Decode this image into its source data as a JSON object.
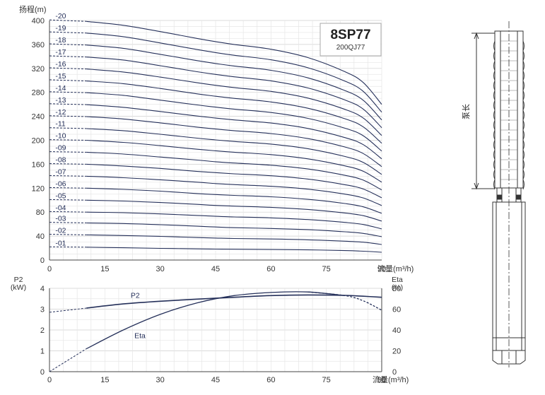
{
  "chart_data": [
    {
      "type": "line",
      "title": "8SP77",
      "subtitle": "200QJ77",
      "xlabel": "流量(m³/h)",
      "ylabel": "扬程(m)",
      "xlim": [
        0,
        90
      ],
      "ylim": [
        0,
        400
      ],
      "x_ticks": [
        "0",
        "15",
        "30",
        "45",
        "60",
        "75",
        "90"
      ],
      "y_ticks": [
        "0",
        "40",
        "80",
        "120",
        "160",
        "200",
        "240",
        "280",
        "320",
        "360",
        "400"
      ],
      "grid": true,
      "x": [
        0,
        10,
        20,
        30,
        40,
        45,
        50,
        60,
        70,
        80,
        85,
        90
      ],
      "series": [
        {
          "name": "-01",
          "values": [
            22,
            21.5,
            20.5,
            19.5,
            18.7,
            18.3,
            18.0,
            17.6,
            17.0,
            15.8,
            14.8,
            13.0
          ]
        },
        {
          "name": "-02",
          "values": [
            43,
            42,
            41,
            39.5,
            37.5,
            36.7,
            36.0,
            35.2,
            33.8,
            31.5,
            29.8,
            26.0
          ]
        },
        {
          "name": "-03",
          "values": [
            63,
            62,
            61,
            59,
            56.5,
            55.2,
            54.0,
            52.8,
            50.8,
            47.2,
            44.5,
            39.0
          ]
        },
        {
          "name": "-04",
          "values": [
            81,
            80,
            79,
            77,
            74.5,
            73.0,
            72.0,
            70.4,
            67.6,
            62.9,
            59.3,
            52.0
          ]
        },
        {
          "name": "-05",
          "values": [
            101,
            100,
            98.5,
            96,
            93,
            91.2,
            90.0,
            88.0,
            84.5,
            78.6,
            74.1,
            65.0
          ]
        },
        {
          "name": "-06",
          "values": [
            121,
            120,
            118,
            115,
            111,
            109.4,
            108.0,
            105.6,
            101.4,
            94.4,
            88.9,
            78.0
          ]
        },
        {
          "name": "-07",
          "values": [
            141,
            140,
            137.5,
            134,
            130,
            127.7,
            126.0,
            123.2,
            118.3,
            110.1,
            103.7,
            91.0
          ]
        },
        {
          "name": "-08",
          "values": [
            161,
            160,
            157,
            153,
            148,
            145.9,
            144.0,
            140.8,
            135.2,
            125.8,
            118.6,
            104.0
          ]
        },
        {
          "name": "-09",
          "values": [
            181,
            180,
            177,
            172,
            167,
            164.1,
            162.0,
            158.4,
            152.1,
            141.5,
            133.4,
            117.0
          ]
        },
        {
          "name": "-10",
          "values": [
            201,
            200,
            196.5,
            191,
            185,
            182.4,
            180.0,
            176.0,
            169.0,
            157.3,
            148.2,
            130.0
          ]
        },
        {
          "name": "-11",
          "values": [
            221,
            219.5,
            216,
            210,
            203.5,
            200.6,
            198.0,
            193.6,
            185.9,
            173.0,
            163.0,
            143.0
          ]
        },
        {
          "name": "-12",
          "values": [
            241,
            239.5,
            235.5,
            229,
            222,
            218.8,
            216.0,
            211.2,
            202.8,
            188.8,
            177.8,
            156.0
          ]
        },
        {
          "name": "-13",
          "values": [
            261,
            259.5,
            255,
            248,
            240.5,
            237.1,
            234.0,
            228.8,
            219.7,
            204.5,
            192.7,
            169.0
          ]
        },
        {
          "name": "-14",
          "values": [
            281,
            279.5,
            275,
            267,
            259,
            255.3,
            252.0,
            246.4,
            236.6,
            220.2,
            207.5,
            182.0
          ]
        },
        {
          "name": "-15",
          "values": [
            301,
            299,
            294.5,
            286.5,
            277.5,
            273.5,
            270.0,
            264.0,
            253.5,
            236.0,
            222.3,
            195.0
          ]
        },
        {
          "name": "-16",
          "values": [
            321,
            319,
            314,
            305.5,
            296,
            291.8,
            288.0,
            281.6,
            270.4,
            251.7,
            237.1,
            208.0
          ]
        },
        {
          "name": "-17",
          "values": [
            341,
            339,
            334,
            324.5,
            314.5,
            310.0,
            306.0,
            299.2,
            287.3,
            267.4,
            252.0,
            221.0
          ]
        },
        {
          "name": "-18",
          "values": [
            361,
            359,
            353.5,
            343.5,
            333,
            328.2,
            324.0,
            316.8,
            304.2,
            283.1,
            266.8,
            234.0
          ]
        },
        {
          "name": "-19",
          "values": [
            381,
            379,
            373,
            362.5,
            351.5,
            346.4,
            342.0,
            334.4,
            321.1,
            298.9,
            281.6,
            247.0
          ]
        },
        {
          "name": "-20",
          "values": [
            401,
            398.5,
            392,
            381.5,
            370,
            364.7,
            360.0,
            352.0,
            338.0,
            314.6,
            296.4,
            260.0
          ]
        }
      ]
    },
    {
      "type": "line",
      "xlabel": "流量(m³/h)",
      "ylabel": "P2\n(kW)",
      "y2label": "Eta\n(%)",
      "xlim": [
        0,
        90
      ],
      "ylim": [
        0,
        4
      ],
      "y2lim": [
        0,
        80
      ],
      "x_ticks": [
        "0",
        "15",
        "30",
        "45",
        "60",
        "75",
        "90"
      ],
      "y_ticks": [
        "0",
        "1",
        "2",
        "3",
        "4"
      ],
      "y2_ticks": [
        "0",
        "20",
        "40",
        "60",
        "80"
      ],
      "grid": true,
      "x": [
        0,
        10,
        20,
        30,
        40,
        50,
        60,
        70,
        80,
        85,
        90
      ],
      "series": [
        {
          "name": "P2",
          "values": [
            2.85,
            3.05,
            3.25,
            3.38,
            3.48,
            3.57,
            3.65,
            3.68,
            3.66,
            3.62,
            3.57
          ]
        },
        {
          "name": "Eta",
          "values": [
            0,
            22,
            40,
            55,
            66,
            73,
            76,
            76.5,
            73,
            68,
            59
          ]
        }
      ]
    }
  ],
  "diagram": {
    "dimension_label": "泵长"
  }
}
